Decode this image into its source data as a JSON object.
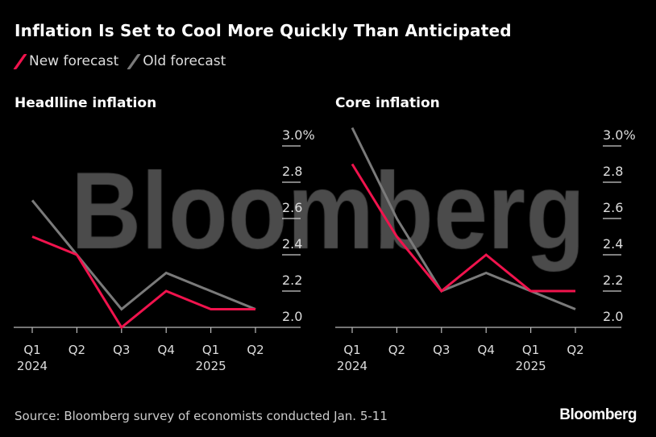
{
  "title": "Inflation Is Set to Cool More Quickly Than Anticipated",
  "legend": [
    {
      "label": "New forecast",
      "color": "#f0134d"
    },
    {
      "label": "Old forecast",
      "color": "#7a7a7a"
    }
  ],
  "source": "Source: Bloomberg survey of economists conducted Jan. 5-11",
  "logo": "Bloomberg",
  "watermark": "Bloomberg",
  "chart_data": [
    {
      "type": "line",
      "title": "Headlline inflation",
      "categories": [
        "Q1",
        "Q2",
        "Q3",
        "Q4",
        "Q1",
        "Q2"
      ],
      "year_labels": [
        "2024",
        "",
        "",
        "",
        "2025",
        ""
      ],
      "yticks": [
        "2.0",
        "2.2",
        "2.4",
        "2.6",
        "2.8",
        "3.0%"
      ],
      "ylim": [
        2.0,
        3.0
      ],
      "series": [
        {
          "name": "New forecast",
          "values": [
            2.5,
            2.4,
            2.0,
            2.2,
            2.1,
            2.1
          ]
        },
        {
          "name": "Old forecast",
          "values": [
            2.7,
            2.4,
            2.1,
            2.3,
            2.2,
            2.1
          ]
        }
      ]
    },
    {
      "type": "line",
      "title": "Core inflation",
      "categories": [
        "Q1",
        "Q2",
        "Q3",
        "Q4",
        "Q1",
        "Q2"
      ],
      "year_labels": [
        "2024",
        "",
        "",
        "",
        "2025",
        ""
      ],
      "yticks": [
        "2.0",
        "2.2",
        "2.4",
        "2.6",
        "2.8",
        "3.0%"
      ],
      "ylim": [
        2.0,
        3.0
      ],
      "series": [
        {
          "name": "New forecast",
          "values": [
            2.9,
            2.5,
            2.2,
            2.4,
            2.2,
            2.2
          ]
        },
        {
          "name": "Old forecast",
          "values": [
            3.1,
            2.6,
            2.2,
            2.3,
            2.2,
            2.1
          ]
        }
      ]
    }
  ]
}
